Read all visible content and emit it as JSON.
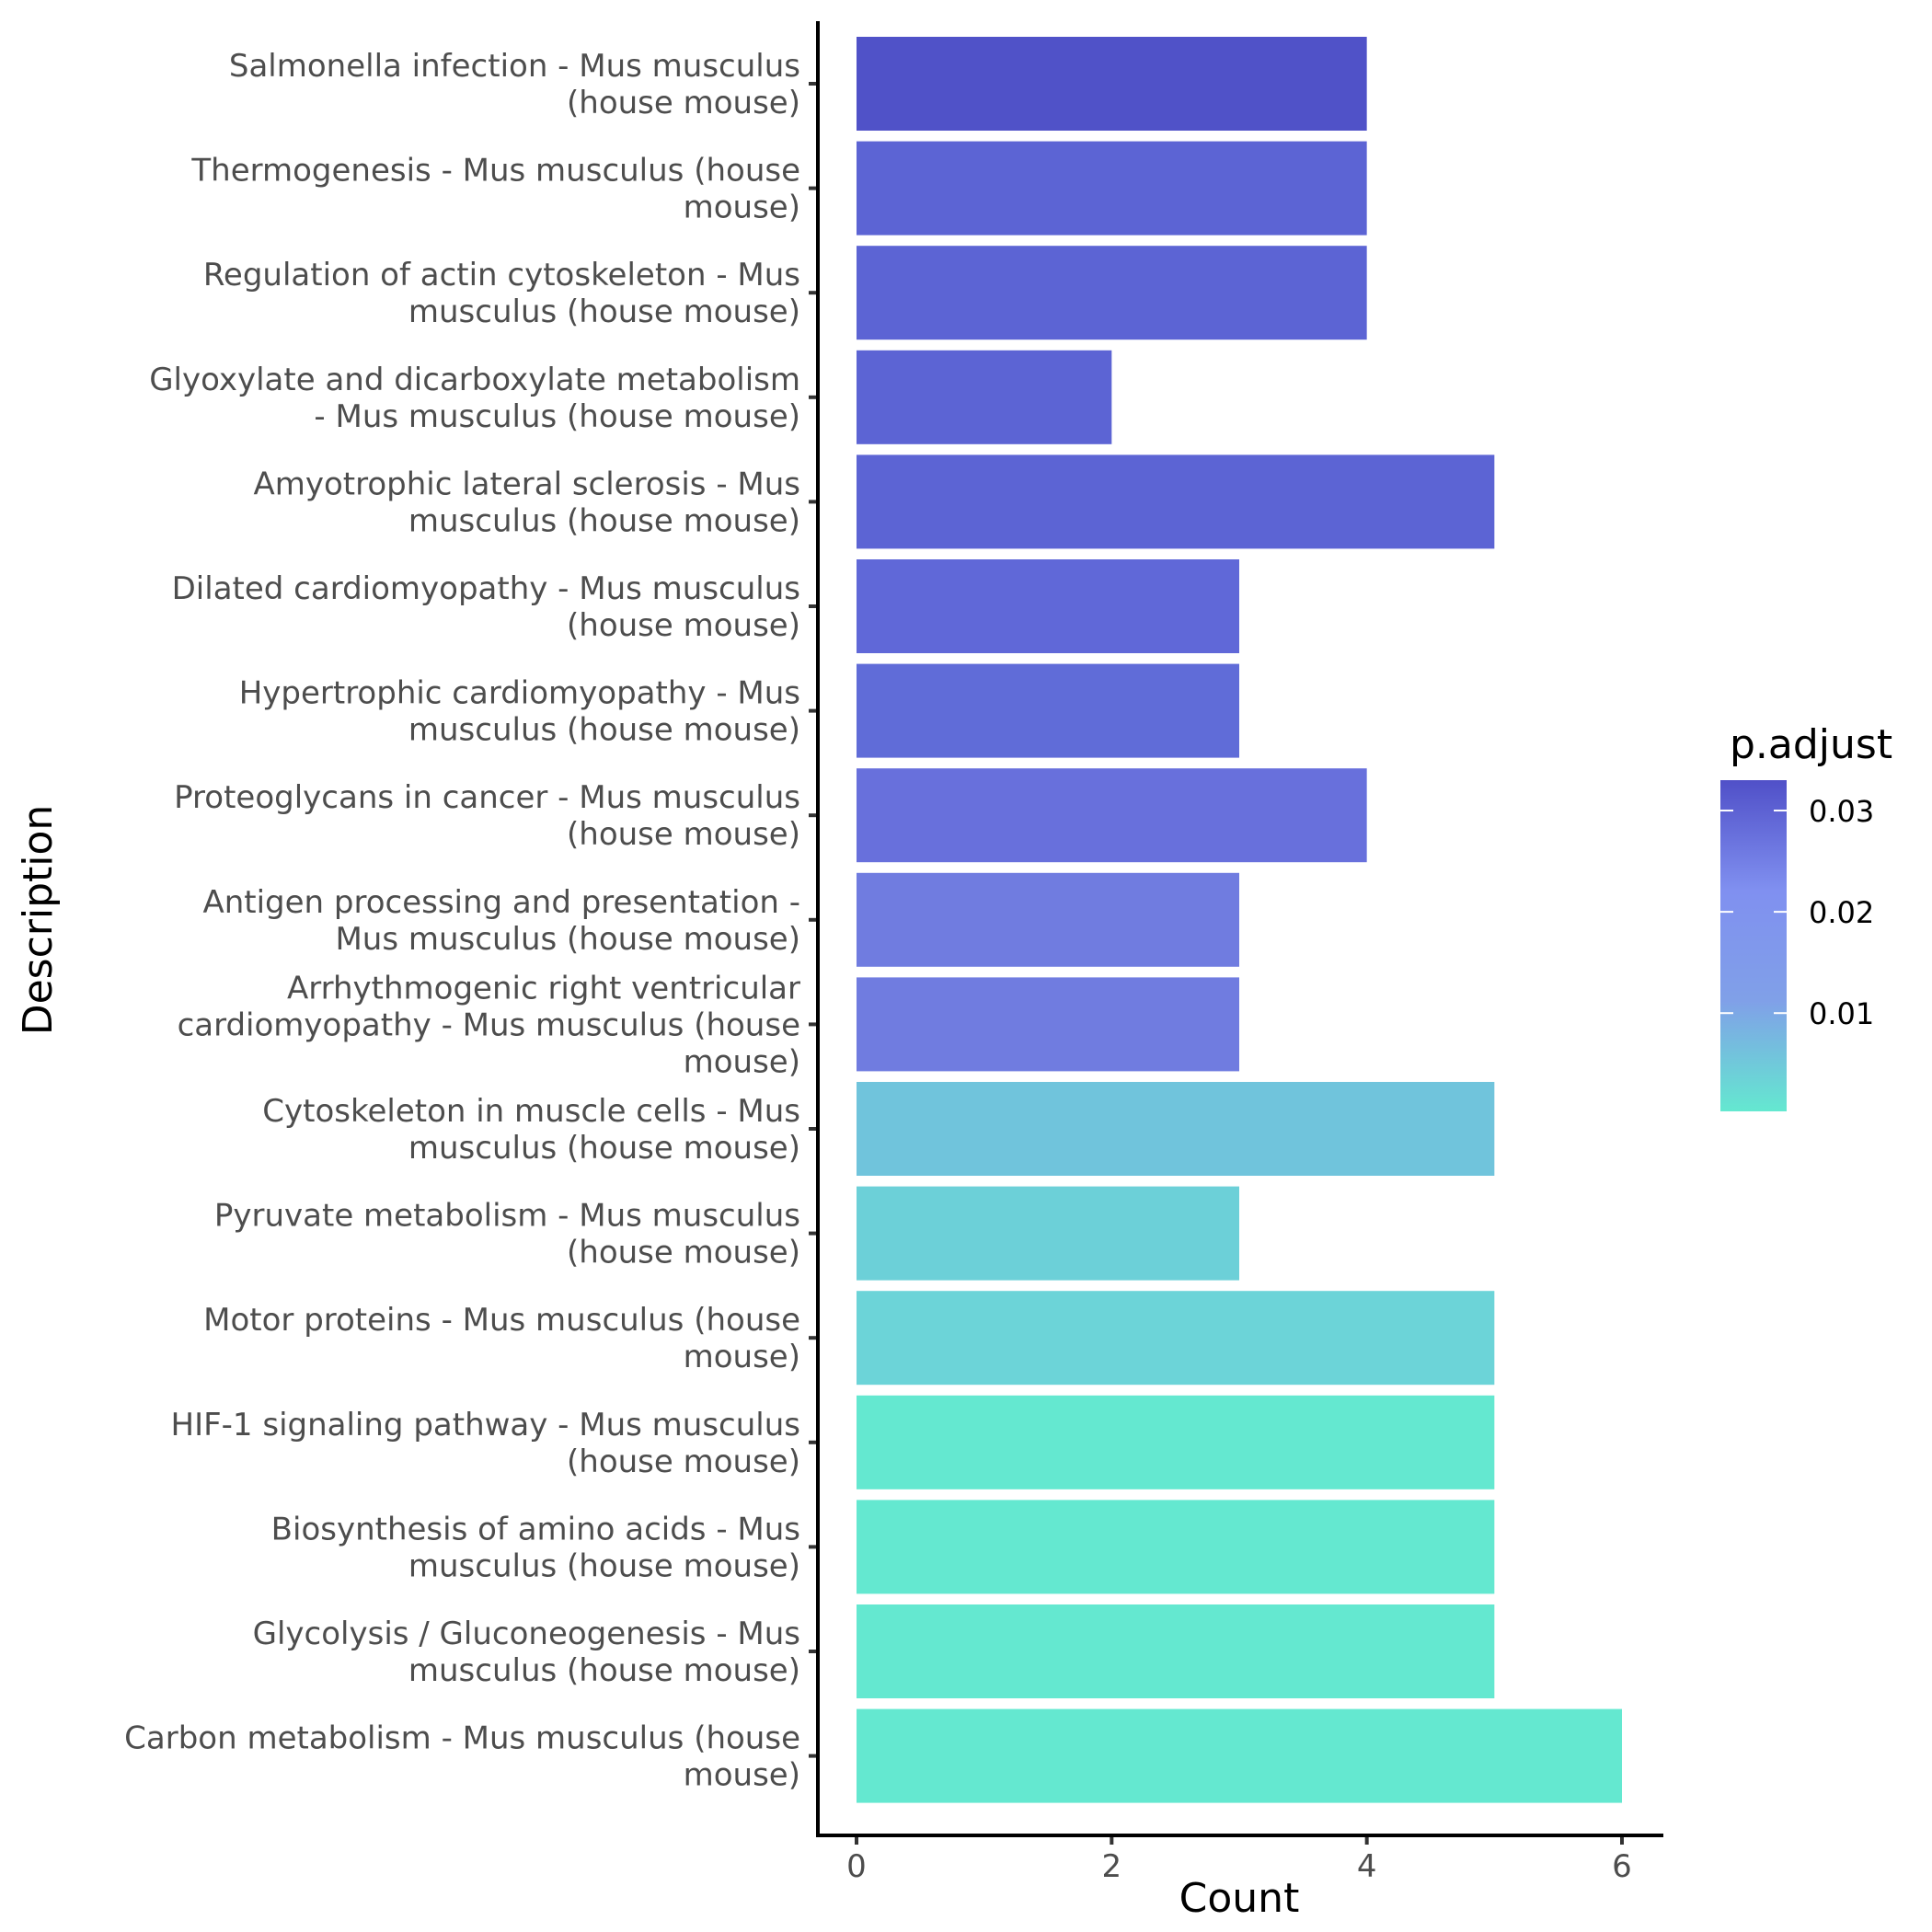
{
  "chart_data": {
    "type": "bar",
    "orientation": "horizontal",
    "title": "",
    "xlabel": "Count",
    "ylabel": "Description",
    "xlim": [
      0,
      6.3
    ],
    "xticks": [
      0,
      2,
      4,
      6
    ],
    "xtick_labels": [
      "0",
      "2",
      "4",
      "6"
    ],
    "grid": false,
    "categories": [
      [
        "Salmonella infection - Mus musculus",
        "(house mouse)"
      ],
      [
        "Thermogenesis - Mus musculus (house",
        "mouse)"
      ],
      [
        "Regulation of actin cytoskeleton - Mus",
        "musculus (house mouse)"
      ],
      [
        "Glyoxylate and dicarboxylate metabolism",
        "- Mus musculus (house mouse)"
      ],
      [
        "Amyotrophic lateral sclerosis - Mus",
        "musculus (house mouse)"
      ],
      [
        "Dilated cardiomyopathy - Mus musculus",
        "(house mouse)"
      ],
      [
        "Hypertrophic cardiomyopathy - Mus",
        "musculus (house mouse)"
      ],
      [
        "Proteoglycans in cancer - Mus musculus",
        "(house mouse)"
      ],
      [
        "Antigen processing and presentation -",
        "Mus musculus (house mouse)"
      ],
      [
        "Arrhythmogenic right ventricular",
        "cardiomyopathy - Mus musculus (house",
        "mouse)"
      ],
      [
        "Cytoskeleton in muscle cells - Mus",
        "musculus (house mouse)"
      ],
      [
        "Pyruvate metabolism - Mus musculus",
        "(house mouse)"
      ],
      [
        "Motor proteins - Mus musculus (house",
        "mouse)"
      ],
      [
        "HIF-1 signaling pathway - Mus musculus",
        "(house mouse)"
      ],
      [
        "Biosynthesis of amino acids - Mus",
        "musculus (house mouse)"
      ],
      [
        "Glycolysis / Gluconeogenesis - Mus",
        "musculus (house mouse)"
      ],
      [
        "Carbon metabolism - Mus musculus (house",
        "mouse)"
      ]
    ],
    "values": [
      4,
      4,
      4,
      2,
      5,
      3,
      3,
      4,
      3,
      3,
      5,
      3,
      5,
      5,
      5,
      5,
      6
    ],
    "bar_colors": [
      "#5052c8",
      "#5c64d4",
      "#5c64d4",
      "#5c64d4",
      "#5c64d4",
      "#6068d8",
      "#606cd8",
      "#6870dc",
      "#707ce0",
      "#707ce0",
      "#70c4dc",
      "#6cd0d8",
      "#6cd4d8",
      "#64e8d0",
      "#64e8d0",
      "#64e8d0",
      "#64e8d0"
    ],
    "legend": {
      "title": "p.adjust",
      "type": "colorbar",
      "position": "right",
      "range": [
        0.0003,
        0.033
      ],
      "ticks": [
        0.01,
        0.02,
        0.03
      ],
      "tick_labels": [
        "0.01",
        "0.02",
        "0.03"
      ],
      "gradient": [
        "#64e8d0",
        "#80a0e8",
        "#8090f0",
        "#5050c8"
      ]
    }
  }
}
